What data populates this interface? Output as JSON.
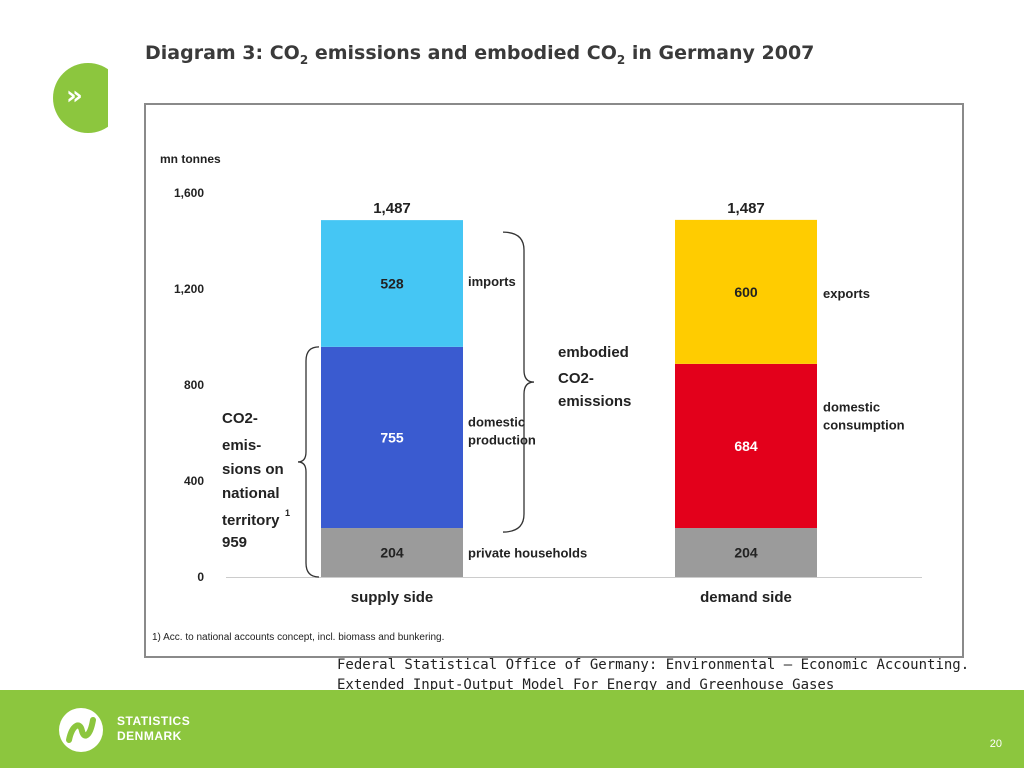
{
  "slide": {
    "title_prefix": "Diagram 3: CO",
    "title_sub1": "2",
    "title_mid": " emissions and embodied CO",
    "title_sub2": "2",
    "title_suffix": " in Germany 2007",
    "nav_icon": "»",
    "source_line1": "Federal Statistical Office of Germany: Environmental – Economic Accounting.",
    "source_line2": "Extended Input-Output Model For Energy and Greenhouse Gases",
    "logo_line1": "STATISTICS",
    "logo_line2": "DENMARK",
    "page_number": "20"
  },
  "chart_data": {
    "type": "bar",
    "stacked": true,
    "ylabel": "mn tonnes",
    "ylim": [
      0,
      1600
    ],
    "yticks": [
      0,
      400,
      800,
      1200,
      1600
    ],
    "ytick_labels": [
      "0",
      "400",
      "800",
      "1,200",
      "1,600"
    ],
    "categories": [
      "supply side",
      "demand side"
    ],
    "totals": [
      "1,487",
      "1,487"
    ],
    "stacks": [
      [
        {
          "label": "private households",
          "value": 204,
          "display": "204",
          "color": "#9b9b9b",
          "text_color": "#222222"
        },
        {
          "label": "domestic production",
          "value": 755,
          "display": "755",
          "color": "#3a5bd0",
          "text_color": "#ffffff"
        },
        {
          "label": "imports",
          "value": 528,
          "display": "528",
          "color": "#45c6f4",
          "text_color": "#222222"
        }
      ],
      [
        {
          "label": "",
          "value": 204,
          "display": "204",
          "color": "#9b9b9b",
          "text_color": "#222222"
        },
        {
          "label": "domestic consumption",
          "value": 684,
          "display": "684",
          "color": "#e3001b",
          "text_color": "#ffffff"
        },
        {
          "label": "exports",
          "value": 600,
          "display": "600",
          "color": "#ffcc00",
          "text_color": "#222222"
        }
      ]
    ],
    "annotation_left": [
      "CO2-",
      "emis-",
      "sions on",
      "national",
      "territory",
      "959"
    ],
    "annotation_left_footnote_mark": "1",
    "annotation_middle": [
      "embodied",
      "CO2-",
      "emissions"
    ],
    "footnote": "1) Acc. to national accounts concept, incl. biomass and bunkering."
  }
}
